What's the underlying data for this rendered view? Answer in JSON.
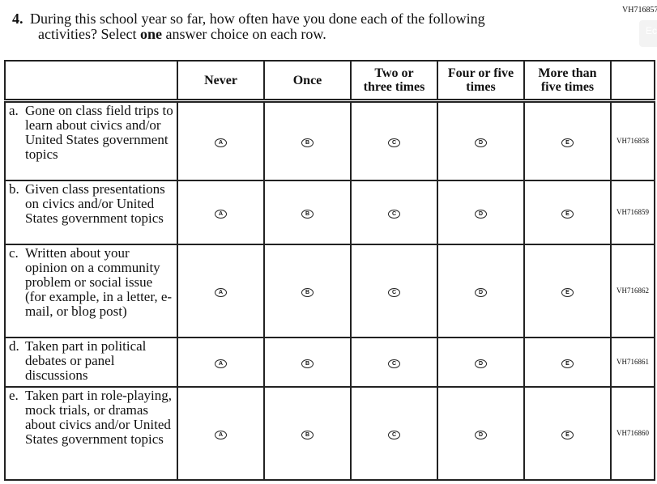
{
  "question_id": "VH716857",
  "ghost_button": "Ec",
  "question": {
    "number": "4.",
    "line1": "During this school year so far, how often have you done each of the following",
    "line2_pre": "activities? Select ",
    "line2_bold": "one",
    "line2_post": " answer choice on each row."
  },
  "columns": [
    "Never",
    "Once",
    "Two or three times",
    "Four or five times",
    "More than five times"
  ],
  "options": [
    "A",
    "B",
    "C",
    "D",
    "E"
  ],
  "rows": [
    {
      "letter": "a.",
      "text": "Gone on class field trips to learn about civics and/or United States government topics",
      "code": "VH716858"
    },
    {
      "letter": "b.",
      "text": "Given class presentations on civics and/or United States government topics",
      "code": "VH716859"
    },
    {
      "letter": "c.",
      "text": "Written about your opinion on a community problem or social issue (for example, in a letter, e-mail, or blog post)",
      "code": "VH716862"
    },
    {
      "letter": "d.",
      "text": "Taken part in political debates or panel discussions",
      "code": "VH716861"
    },
    {
      "letter": "e.",
      "text": "Taken part in role-playing, mock trials, or dramas about civics and/or United States government topics",
      "code": "VH716860"
    }
  ]
}
